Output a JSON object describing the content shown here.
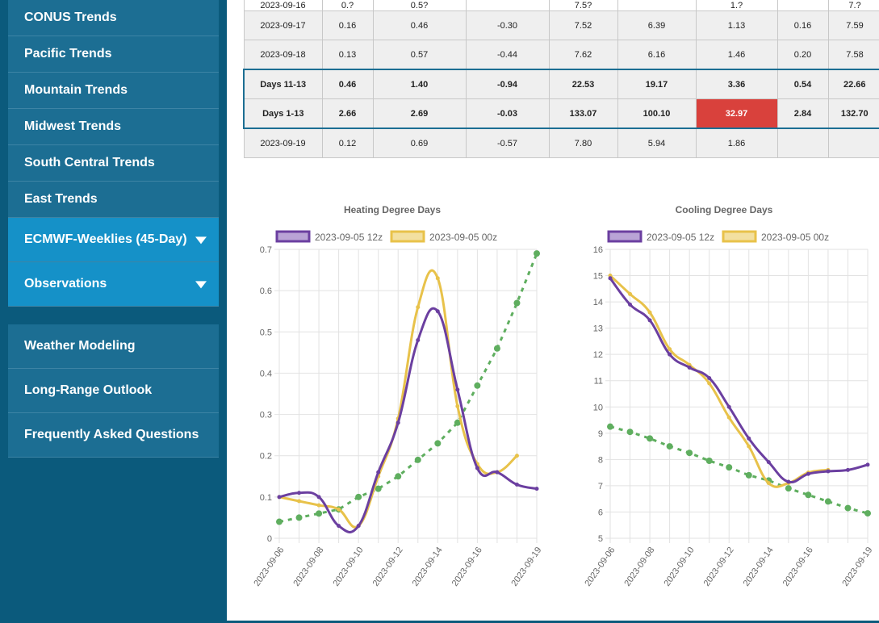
{
  "sidebar": {
    "top_items": [
      {
        "label": "CONUS Trends"
      },
      {
        "label": "Pacific Trends"
      },
      {
        "label": "Mountain Trends"
      },
      {
        "label": "Midwest Trends"
      },
      {
        "label": "South Central Trends"
      },
      {
        "label": "East Trends"
      },
      {
        "label": "ECMWF-Weeklies (45-Day)"
      },
      {
        "label": "Observations"
      }
    ],
    "bottom_items": [
      {
        "label": "Weather Modeling"
      },
      {
        "label": "Long-Range Outlook"
      },
      {
        "label": "Frequently Asked Questions"
      }
    ],
    "colors": {
      "background": "#0b5a7c",
      "item": "#1c6e93",
      "active": "#1591c8"
    }
  },
  "table": {
    "rows": [
      {
        "cells": [
          "2023-09-16",
          "0.?",
          "0.5?",
          "",
          "7.5?",
          "",
          "1.?",
          "",
          "7.?"
        ],
        "style": "partial"
      },
      {
        "cells": [
          "2023-09-17",
          "0.16",
          "0.46",
          "-0.30",
          "7.52",
          "6.39",
          "1.13",
          "0.16",
          "7.59"
        ],
        "style": "gray"
      },
      {
        "cells": [
          "2023-09-18",
          "0.13",
          "0.57",
          "-0.44",
          "7.62",
          "6.16",
          "1.46",
          "0.20",
          "7.58"
        ],
        "style": "gray"
      },
      {
        "cells": [
          "Days 11-13",
          "0.46",
          "1.40",
          "-0.94",
          "22.53",
          "19.17",
          "3.36",
          "0.54",
          "22.66"
        ],
        "style": "hl top"
      },
      {
        "cells": [
          "Days 1-13",
          "2.66",
          "2.69",
          "-0.03",
          "133.07",
          "100.10",
          "32.97",
          "2.84",
          "132.70"
        ],
        "style": "hl bot",
        "red_col": 6
      },
      {
        "cells": [
          "2023-09-19",
          "0.12",
          "0.69",
          "-0.57",
          "7.80",
          "5.94",
          "1.86",
          "",
          ""
        ],
        "style": "gray"
      }
    ]
  },
  "charts": {
    "hdd": {
      "title": "Heating Degree Days",
      "legend": [
        "2023-09-05 12z",
        "2023-09-05 00z"
      ],
      "y_ticks": [
        "0",
        "0.1",
        "0.2",
        "0.3",
        "0.4",
        "0.5",
        "0.6",
        "0.7"
      ],
      "x_ticks": [
        "2023-09-06",
        "2023-09-08",
        "2023-09-10",
        "2023-09-12",
        "2023-09-14",
        "2023-09-16",
        "2023-09-19"
      ]
    },
    "cdd": {
      "title": "Cooling Degree Days",
      "legend": [
        "2023-09-05 12z",
        "2023-09-05 00z"
      ],
      "y_ticks": [
        "5",
        "6",
        "7",
        "8",
        "9",
        "10",
        "11",
        "12",
        "13",
        "14",
        "15",
        "16"
      ],
      "x_ticks": [
        "2023-09-06",
        "2023-09-08",
        "2023-09-10",
        "2023-09-12",
        "2023-09-14",
        "2023-09-16",
        "2023-09-19"
      ]
    }
  },
  "chart_data": [
    {
      "type": "line",
      "title": "Heating Degree Days",
      "x": [
        "2023-09-06",
        "2023-09-07",
        "2023-09-08",
        "2023-09-09",
        "2023-09-10",
        "2023-09-11",
        "2023-09-12",
        "2023-09-13",
        "2023-09-14",
        "2023-09-15",
        "2023-09-16",
        "2023-09-17",
        "2023-09-18",
        "2023-09-19"
      ],
      "ylim": [
        0,
        0.7
      ],
      "series": [
        {
          "name": "2023-09-05 12z",
          "color": "#6b3fa0",
          "values": [
            0.1,
            0.11,
            0.1,
            0.03,
            0.03,
            0.16,
            0.28,
            0.48,
            0.55,
            0.36,
            0.17,
            0.16,
            0.13,
            0.12
          ]
        },
        {
          "name": "2023-09-05 00z",
          "color": "#e8c24a",
          "values": [
            0.1,
            0.09,
            0.08,
            0.07,
            0.03,
            0.15,
            0.29,
            0.56,
            0.63,
            0.32,
            0.18,
            0.16,
            0.2,
            null
          ]
        },
        {
          "color": "#5fae5f",
          "dashed": true,
          "values": [
            0.04,
            0.05,
            0.06,
            0.07,
            0.1,
            0.12,
            0.15,
            0.19,
            0.23,
            0.28,
            0.37,
            0.46,
            0.57,
            0.69
          ]
        }
      ],
      "grid": true,
      "legend": "top"
    },
    {
      "type": "line",
      "title": "Cooling Degree Days",
      "x": [
        "2023-09-06",
        "2023-09-07",
        "2023-09-08",
        "2023-09-09",
        "2023-09-10",
        "2023-09-11",
        "2023-09-12",
        "2023-09-13",
        "2023-09-14",
        "2023-09-15",
        "2023-09-16",
        "2023-09-17",
        "2023-09-18",
        "2023-09-19"
      ],
      "ylim": [
        5,
        16
      ],
      "series": [
        {
          "name": "2023-09-05 12z",
          "color": "#6b3fa0",
          "values": [
            14.9,
            13.9,
            13.3,
            12.0,
            11.5,
            11.1,
            10.0,
            8.8,
            7.9,
            7.15,
            7.45,
            7.55,
            7.6,
            7.8
          ]
        },
        {
          "name": "2023-09-05 00z",
          "color": "#e8c24a",
          "values": [
            15.0,
            14.3,
            13.6,
            12.2,
            11.6,
            10.9,
            9.6,
            8.5,
            7.1,
            7.1,
            7.5,
            7.6,
            null,
            null
          ]
        },
        {
          "color": "#5fae5f",
          "dashed": true,
          "values": [
            9.25,
            9.05,
            8.8,
            8.5,
            8.25,
            7.95,
            7.7,
            7.4,
            7.2,
            6.9,
            6.65,
            6.4,
            6.15,
            5.95
          ]
        }
      ],
      "grid": true,
      "legend": "top"
    }
  ]
}
